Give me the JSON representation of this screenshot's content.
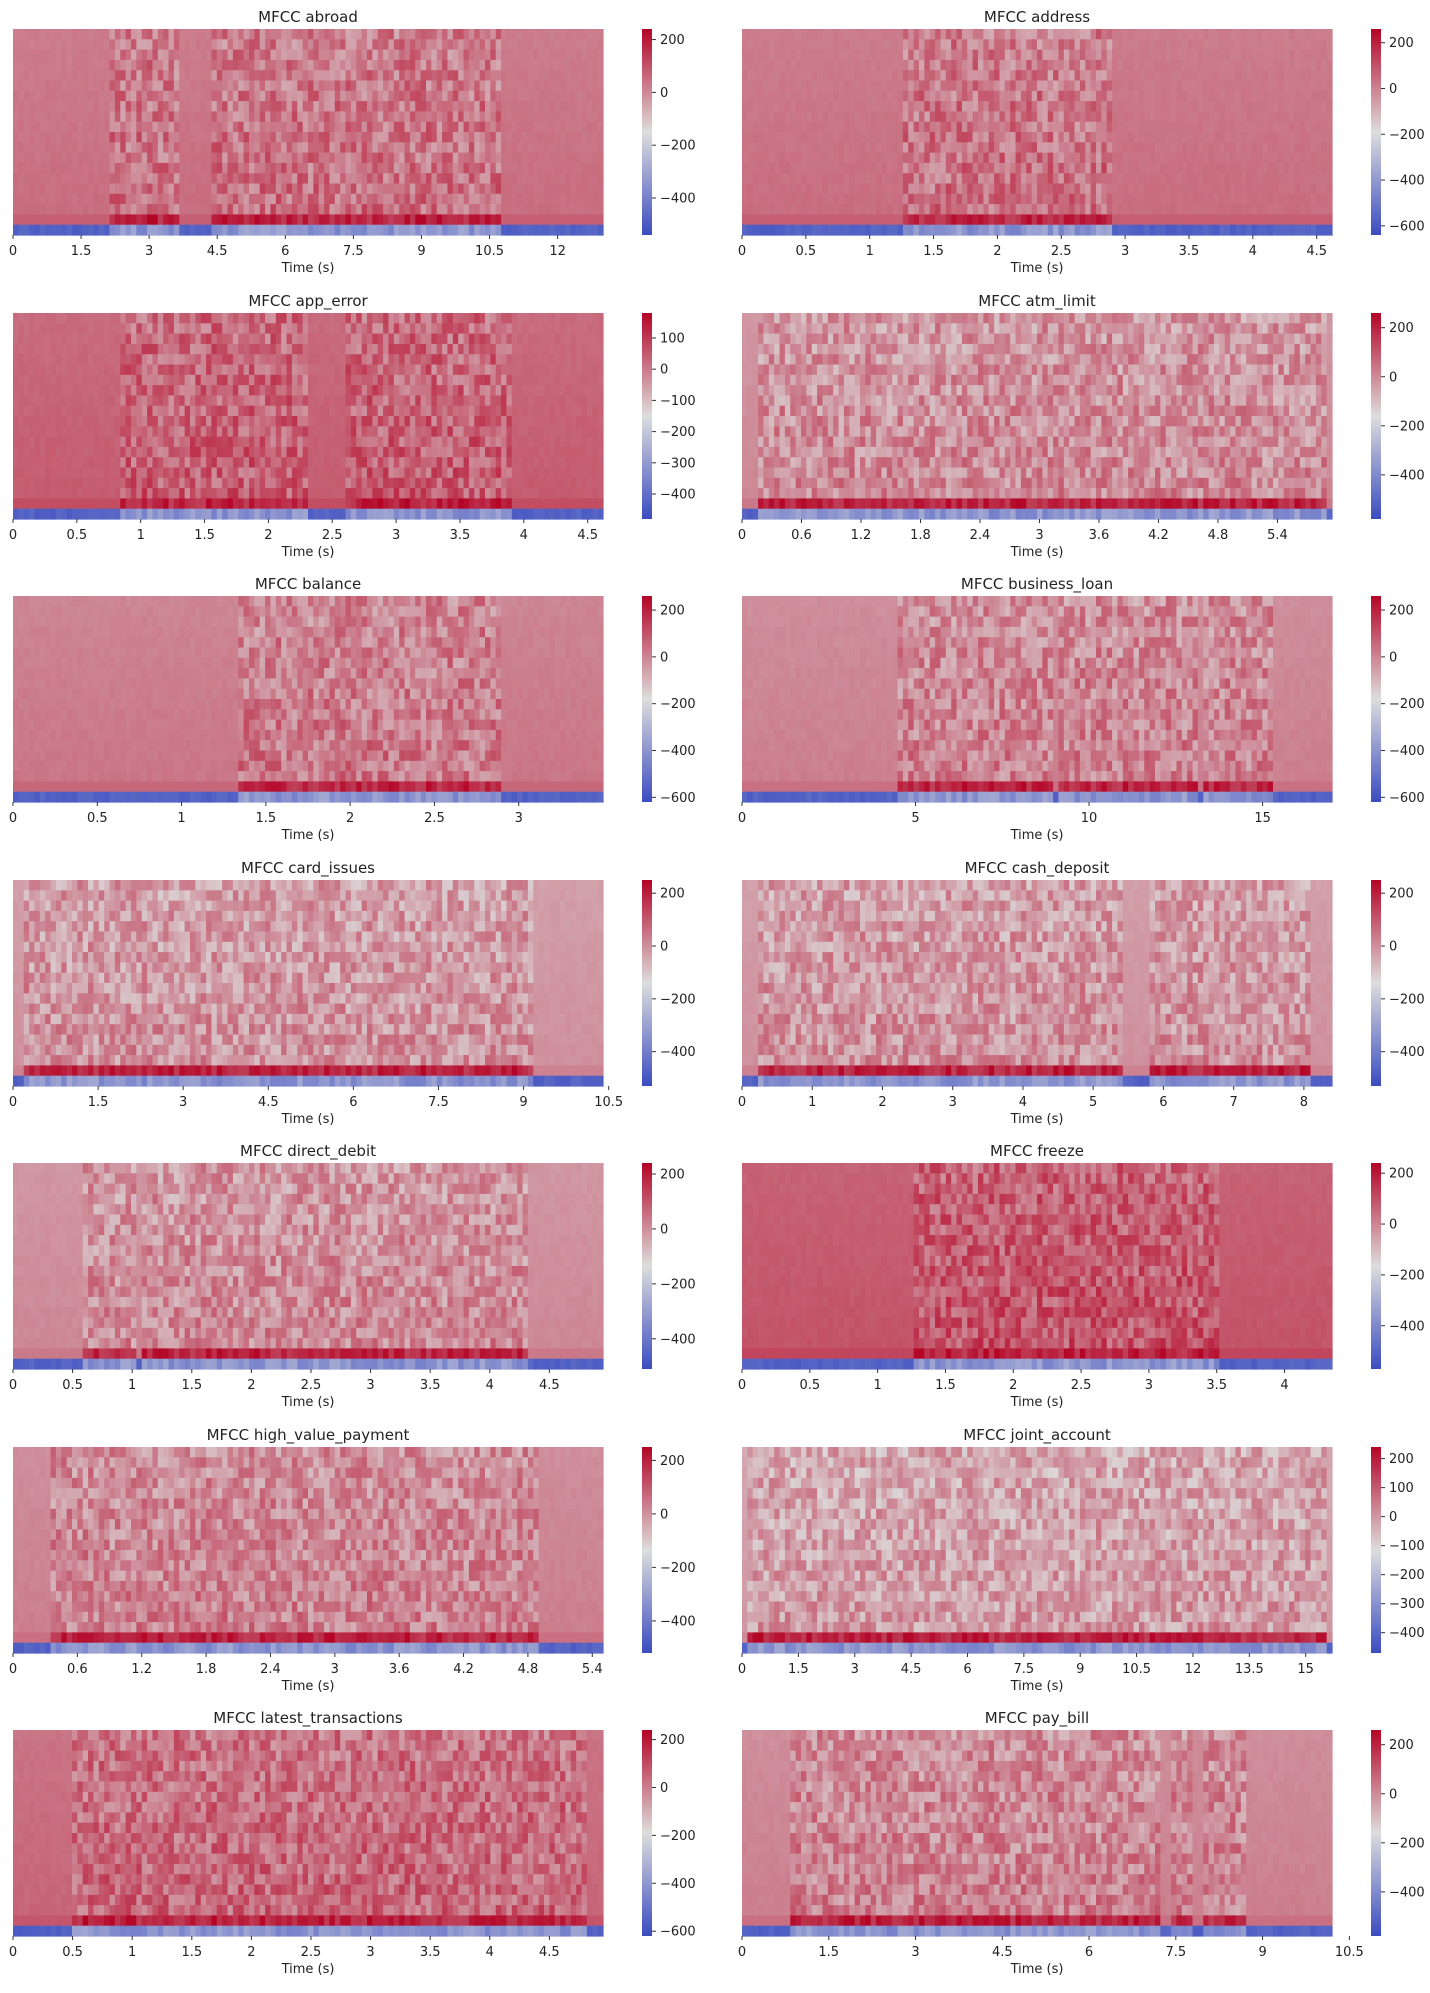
{
  "chart_data": [
    {
      "type": "heatmap",
      "title": "MFCC abroad",
      "xlabel": "Time (s)",
      "duration": 13.0,
      "xticks": [
        "0",
        "1.5",
        "3",
        "4.5",
        "6",
        "7.5",
        "9",
        "10.5",
        "12"
      ],
      "colorbar_ticks": [
        "200",
        "0",
        "-200",
        "-400"
      ],
      "colorbar_range": [
        -540,
        240
      ],
      "active_segments": [
        [
          2.1,
          3.65
        ],
        [
          4.4,
          10.7
        ]
      ],
      "silence_level": -420,
      "speech_level": -180,
      "base_tint": 0.78
    },
    {
      "type": "heatmap",
      "title": "MFCC address",
      "xlabel": "Time (s)",
      "duration": 4.62,
      "xticks": [
        "0",
        "0.5",
        "1",
        "1.5",
        "2",
        "2.5",
        "3",
        "3.5",
        "4",
        "4.5"
      ],
      "colorbar_ticks": [
        "200",
        "0",
        "-200",
        "-400",
        "-600"
      ],
      "colorbar_range": [
        -640,
        260
      ],
      "active_segments": [
        [
          1.25,
          2.9
        ]
      ],
      "silence_level": -560,
      "speech_level": -250,
      "base_tint": 0.78
    },
    {
      "type": "heatmap",
      "title": "MFCC app_error",
      "xlabel": "Time (s)",
      "duration": 4.62,
      "xticks": [
        "0",
        "0.5",
        "1",
        "1.5",
        "2",
        "2.5",
        "3",
        "3.5",
        "4",
        "4.5"
      ],
      "colorbar_ticks": [
        "100",
        "0",
        "-100",
        "-200",
        "-300",
        "-400"
      ],
      "colorbar_range": [
        -480,
        180
      ],
      "active_segments": [
        [
          0.85,
          2.3
        ],
        [
          2.6,
          3.9
        ]
      ],
      "silence_level": -440,
      "speech_level": -220,
      "base_tint": 0.82
    },
    {
      "type": "heatmap",
      "title": "MFCC atm_limit",
      "xlabel": "Time (s)",
      "duration": 5.95,
      "xticks": [
        "0",
        "0.6",
        "1.2",
        "1.8",
        "2.4",
        "3",
        "3.6",
        "4.2",
        "4.8",
        "5.4"
      ],
      "colorbar_ticks": [
        "200",
        "0",
        "-200",
        "-400"
      ],
      "colorbar_range": [
        -580,
        260
      ],
      "active_segments": [
        [
          0.15,
          5.9
        ]
      ],
      "silence_level": -520,
      "speech_level": -220,
      "base_tint": 0.72
    },
    {
      "type": "heatmap",
      "title": "MFCC balance",
      "xlabel": "Time (s)",
      "duration": 3.5,
      "xticks": [
        "0",
        "0.5",
        "1",
        "1.5",
        "2",
        "2.5",
        "3"
      ],
      "colorbar_ticks": [
        "200",
        "0",
        "-200",
        "-400",
        "-600"
      ],
      "colorbar_range": [
        -620,
        260
      ],
      "active_segments": [
        [
          1.35,
          2.9
        ]
      ],
      "silence_level": -580,
      "speech_level": -260,
      "base_tint": 0.76
    },
    {
      "type": "heatmap",
      "title": "MFCC business_loan",
      "xlabel": "Time (s)",
      "duration": 17.0,
      "xticks": [
        "0",
        "5",
        "10",
        "15"
      ],
      "colorbar_ticks": [
        "200",
        "0",
        "-200",
        "-400",
        "-600"
      ],
      "colorbar_range": [
        -620,
        260
      ],
      "active_segments": [
        [
          4.5,
          8.9
        ],
        [
          9.1,
          13.1
        ],
        [
          13.3,
          15.3
        ]
      ],
      "silence_level": -580,
      "speech_level": -220,
      "base_tint": 0.74
    },
    {
      "type": "heatmap",
      "title": "MFCC card_issues",
      "xlabel": "Time (s)",
      "duration": 10.4,
      "xticks": [
        "0",
        "1.5",
        "3",
        "4.5",
        "6",
        "7.5",
        "9",
        "10.5"
      ],
      "colorbar_ticks": [
        "200",
        "0",
        "-200",
        "-400"
      ],
      "colorbar_range": [
        -530,
        250
      ],
      "active_segments": [
        [
          0.15,
          9.2
        ]
      ],
      "silence_level": -480,
      "speech_level": -200,
      "base_tint": 0.7
    },
    {
      "type": "heatmap",
      "title": "MFCC cash_deposit",
      "xlabel": "Time (s)",
      "duration": 8.4,
      "xticks": [
        "0",
        "1",
        "2",
        "3",
        "4",
        "5",
        "6",
        "7",
        "8"
      ],
      "colorbar_ticks": [
        "200",
        "0",
        "-200",
        "-400"
      ],
      "colorbar_range": [
        -530,
        250
      ],
      "active_segments": [
        [
          0.2,
          5.4
        ],
        [
          5.8,
          8.1
        ]
      ],
      "silence_level": -480,
      "speech_level": -200,
      "base_tint": 0.7
    },
    {
      "type": "heatmap",
      "title": "MFCC direct_debit",
      "xlabel": "Time (s)",
      "duration": 4.95,
      "xticks": [
        "0",
        "0.5",
        "1",
        "1.5",
        "2",
        "2.5",
        "3",
        "3.5",
        "4",
        "4.5"
      ],
      "colorbar_ticks": [
        "200",
        "0",
        "-200",
        "-400"
      ],
      "colorbar_range": [
        -510,
        240
      ],
      "active_segments": [
        [
          0.6,
          1.05
        ],
        [
          1.1,
          4.3
        ]
      ],
      "silence_level": -460,
      "speech_level": -200,
      "base_tint": 0.72
    },
    {
      "type": "heatmap",
      "title": "MFCC freeze",
      "xlabel": "Time (s)",
      "duration": 4.35,
      "xticks": [
        "0",
        "0.5",
        "1",
        "1.5",
        "2",
        "2.5",
        "3",
        "3.5",
        "4"
      ],
      "colorbar_ticks": [
        "200",
        "0",
        "-200",
        "-400"
      ],
      "colorbar_range": [
        -570,
        240
      ],
      "active_segments": [
        [
          1.25,
          3.5
        ]
      ],
      "silence_level": -520,
      "speech_level": -240,
      "base_tint": 0.84
    },
    {
      "type": "heatmap",
      "title": "MFCC high_value_payment",
      "xlabel": "Time (s)",
      "duration": 5.5,
      "xticks": [
        "0",
        "0.6",
        "1.2",
        "1.8",
        "2.4",
        "3",
        "3.6",
        "4.2",
        "4.8",
        "5.4"
      ],
      "colorbar_ticks": [
        "200",
        "0",
        "-200",
        "-400"
      ],
      "colorbar_range": [
        -520,
        250
      ],
      "active_segments": [
        [
          0.35,
          4.9
        ]
      ],
      "silence_level": -470,
      "speech_level": -230,
      "base_tint": 0.74
    },
    {
      "type": "heatmap",
      "title": "MFCC joint_account",
      "xlabel": "Time (s)",
      "duration": 15.7,
      "xticks": [
        "0",
        "1.5",
        "3",
        "4.5",
        "6",
        "7.5",
        "9",
        "10.5",
        "12",
        "13.5",
        "15"
      ],
      "colorbar_ticks": [
        "200",
        "100",
        "0",
        "-100",
        "-200",
        "-300",
        "-400"
      ],
      "colorbar_range": [
        -470,
        240
      ],
      "active_segments": [
        [
          0.2,
          15.6
        ]
      ],
      "silence_level": -430,
      "speech_level": -220,
      "base_tint": 0.68
    },
    {
      "type": "heatmap",
      "title": "MFCC latest_transactions",
      "xlabel": "Time (s)",
      "duration": 4.95,
      "xticks": [
        "0",
        "0.5",
        "1",
        "1.5",
        "2",
        "2.5",
        "3",
        "3.5",
        "4",
        "4.5"
      ],
      "colorbar_ticks": [
        "200",
        "0",
        "-200",
        "-400",
        "-600"
      ],
      "colorbar_range": [
        -620,
        240
      ],
      "active_segments": [
        [
          0.5,
          4.8
        ]
      ],
      "silence_level": -560,
      "speech_level": -230,
      "base_tint": 0.8
    },
    {
      "type": "heatmap",
      "title": "MFCC pay_bill",
      "xlabel": "Time (s)",
      "duration": 10.2,
      "xticks": [
        "0",
        "1.5",
        "3",
        "4.5",
        "6",
        "7.5",
        "9",
        "10.5"
      ],
      "colorbar_ticks": [
        "200",
        "0",
        "-200",
        "-400"
      ],
      "colorbar_range": [
        -580,
        260
      ],
      "active_segments": [
        [
          0.8,
          7.2
        ],
        [
          7.4,
          7.8
        ],
        [
          8.0,
          8.7
        ]
      ],
      "silence_level": -520,
      "speech_level": -230,
      "base_tint": 0.74
    }
  ],
  "colormap": {
    "name": "coolwarm",
    "low": "#3b4cc0",
    "mid": "#dddddd",
    "high": "#b40426"
  },
  "grid": false,
  "legend": "colorbar-right"
}
